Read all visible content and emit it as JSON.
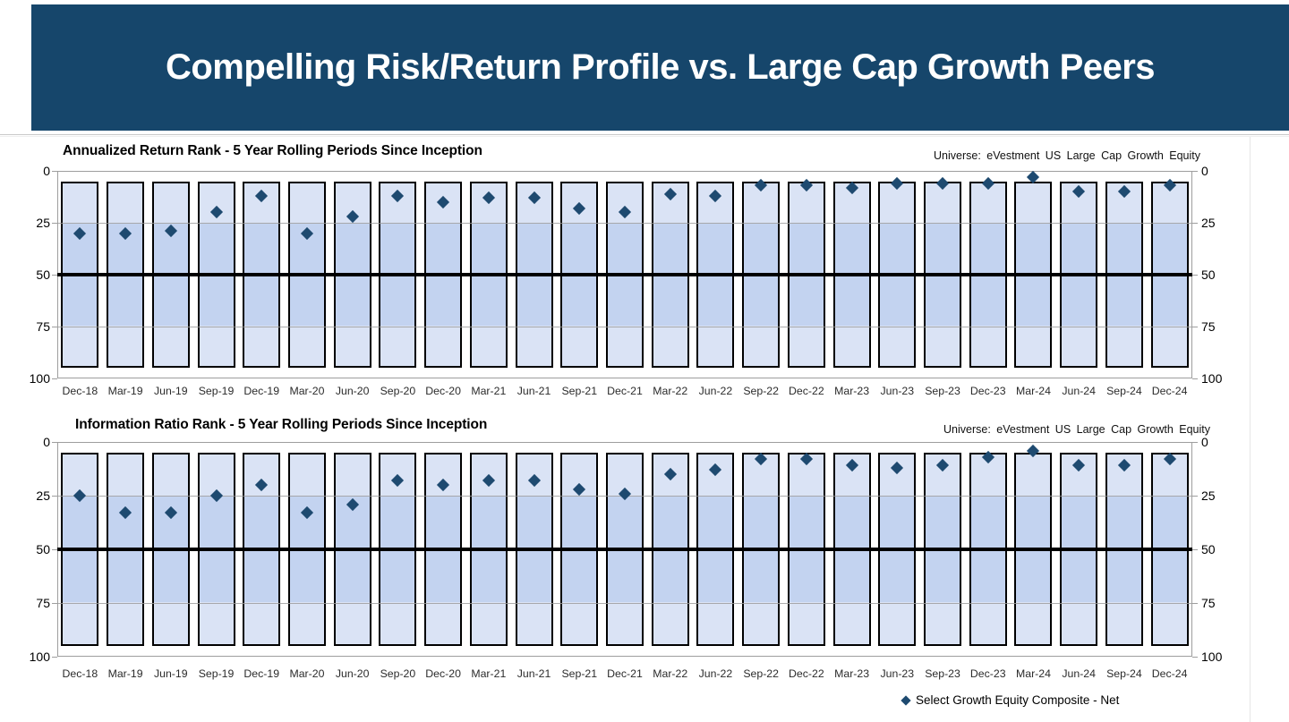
{
  "header": {
    "title": "Compelling Risk/Return Profile vs. Large Cap Growth Peers"
  },
  "colors": {
    "header_bg": "#16466B",
    "header_text": "#FFFFFF",
    "quartile_band_light": "#DAE3F5",
    "quartile_band_mid": "#C3D3F0",
    "bar_border": "#000000",
    "marker": "#1E4A70",
    "median_line": "#000000",
    "grid_line": "#9E9E9E",
    "axis_text": "#000000"
  },
  "legend": {
    "marker_icon": "diamond",
    "label": "Select Growth Equity Composite - Net"
  },
  "chart_data": [
    {
      "type": "scatter",
      "title": "Annualized Return Rank - 5 Year Rolling Periods Since Inception",
      "universe_label": "Universe: eVestment US Large Cap Growth Equity",
      "y_axis": {
        "ticks": [
          0,
          25,
          50,
          75,
          100
        ],
        "min": 0,
        "max": 100,
        "inverted": true,
        "labels_on_both_sides": true,
        "grid": true
      },
      "median_line": 50,
      "universe_range_bars": {
        "from_percentile": 5,
        "to_percentile": 95,
        "band_breaks": [
          25,
          75
        ]
      },
      "categories": [
        "Dec-18",
        "Mar-19",
        "Jun-19",
        "Sep-19",
        "Dec-19",
        "Mar-20",
        "Jun-20",
        "Sep-20",
        "Dec-20",
        "Mar-21",
        "Jun-21",
        "Sep-21",
        "Dec-21",
        "Mar-22",
        "Jun-22",
        "Sep-22",
        "Dec-22",
        "Mar-23",
        "Jun-23",
        "Sep-23",
        "Dec-23",
        "Mar-24",
        "Jun-24",
        "Sep-24",
        "Dec-24"
      ],
      "series": [
        {
          "name": "Select Growth Equity Composite - Net",
          "values": [
            30,
            30,
            29,
            20,
            12,
            30,
            22,
            12,
            15,
            13,
            13,
            18,
            20,
            11,
            12,
            7,
            7,
            8,
            6,
            6,
            6,
            3,
            10,
            10,
            7
          ]
        }
      ]
    },
    {
      "type": "scatter",
      "title": "Information Ratio Rank - 5 Year Rolling Periods Since Inception",
      "universe_label": "Universe: eVestment US Large Cap Growth Equity",
      "y_axis": {
        "ticks": [
          0,
          25,
          50,
          75,
          100
        ],
        "min": 0,
        "max": 100,
        "inverted": true,
        "labels_on_both_sides": true,
        "grid": true
      },
      "median_line": 50,
      "universe_range_bars": {
        "from_percentile": 5,
        "to_percentile": 95,
        "band_breaks": [
          25,
          75
        ]
      },
      "categories": [
        "Dec-18",
        "Mar-19",
        "Jun-19",
        "Sep-19",
        "Dec-19",
        "Mar-20",
        "Jun-20",
        "Sep-20",
        "Dec-20",
        "Mar-21",
        "Jun-21",
        "Sep-21",
        "Dec-21",
        "Mar-22",
        "Jun-22",
        "Sep-22",
        "Dec-22",
        "Mar-23",
        "Jun-23",
        "Sep-23",
        "Dec-23",
        "Mar-24",
        "Jun-24",
        "Sep-24",
        "Dec-24"
      ],
      "series": [
        {
          "name": "Select Growth Equity Composite - Net",
          "values": [
            25,
            33,
            33,
            25,
            20,
            33,
            29,
            18,
            20,
            18,
            18,
            22,
            24,
            15,
            13,
            8,
            8,
            11,
            12,
            11,
            7,
            4,
            11,
            11,
            8
          ]
        }
      ]
    }
  ]
}
